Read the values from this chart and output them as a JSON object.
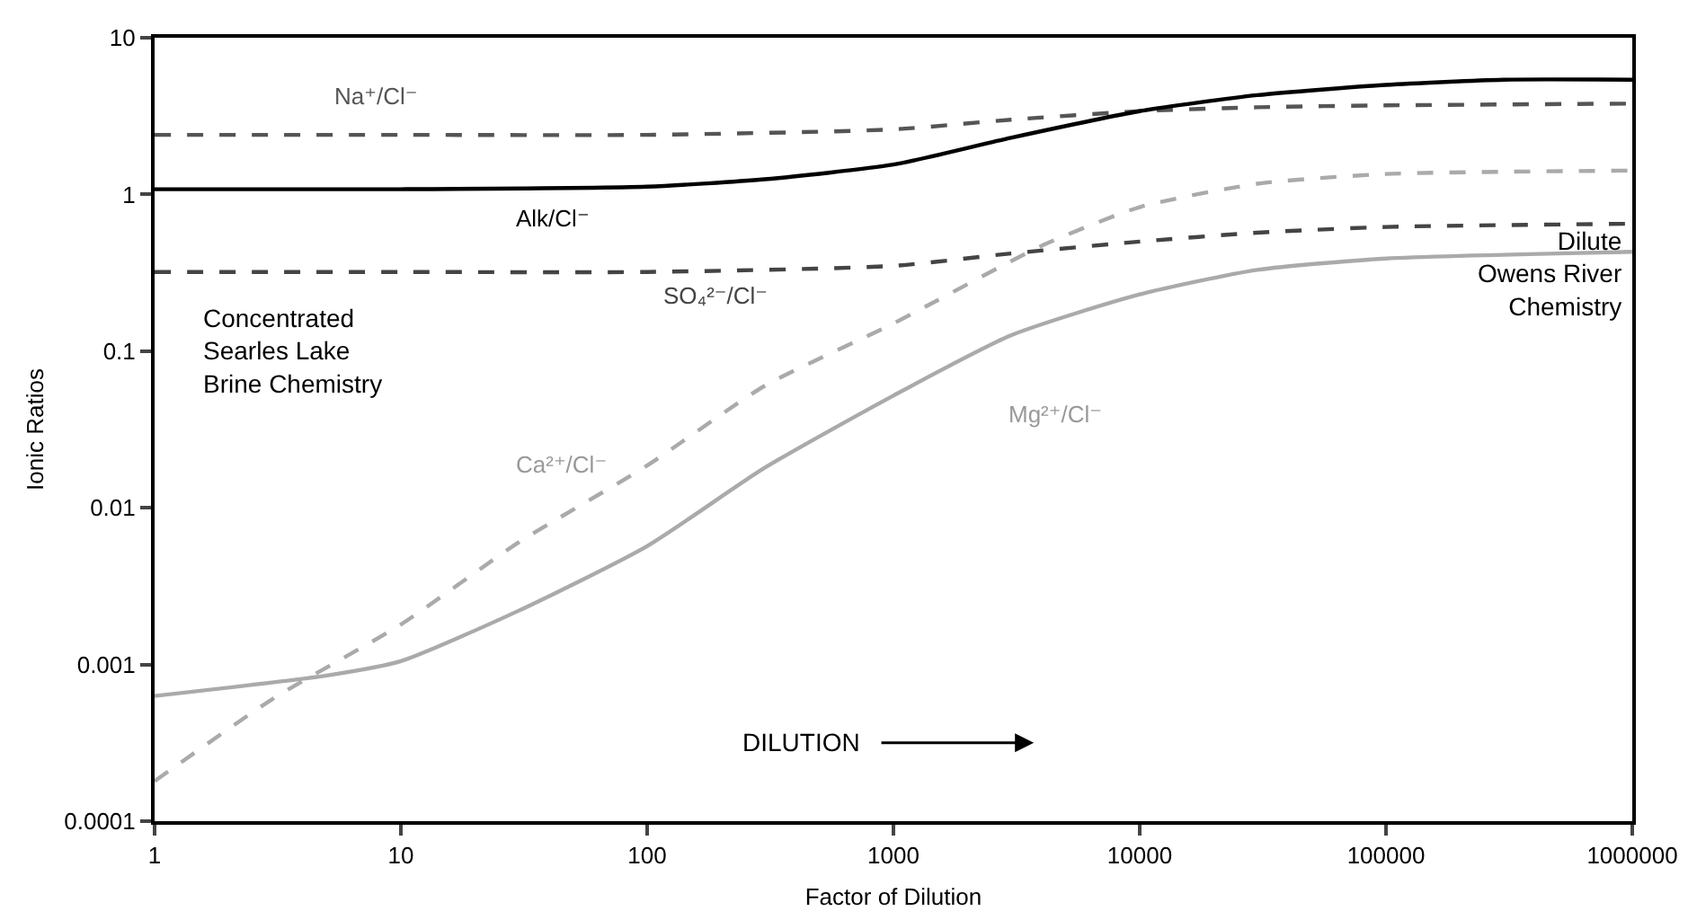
{
  "chart_data": {
    "type": "line",
    "xlabel": "Factor of Dilution",
    "ylabel": "Ionic Ratios",
    "log": "xy",
    "xlim": [
      1,
      1000000
    ],
    "xticks": [
      1,
      10,
      100,
      1000,
      10000,
      100000,
      1000000
    ],
    "ylim": [
      0.0001,
      10
    ],
    "yticks": [
      0.0001,
      0.001,
      0.01,
      0.1,
      1,
      10
    ],
    "grid": false,
    "legend": false,
    "marker": "none",
    "series": [
      {
        "name": "Na⁺/Cl⁻",
        "color": "#555555",
        "line_style": "dashed",
        "x": [
          1,
          10,
          100,
          1000,
          3000,
          10000,
          30000,
          100000,
          1000000
        ],
        "values": [
          2.4,
          2.4,
          2.4,
          2.6,
          3.0,
          3.4,
          3.6,
          3.7,
          3.8
        ]
      },
      {
        "name": "Alk/Cl⁻",
        "color": "#000000",
        "line_style": "solid",
        "x": [
          1,
          10,
          100,
          300,
          1000,
          3000,
          10000,
          30000,
          100000,
          300000,
          1000000
        ],
        "values": [
          1.08,
          1.08,
          1.12,
          1.25,
          1.55,
          2.3,
          3.4,
          4.3,
          5.0,
          5.4,
          5.4
        ]
      },
      {
        "name": "SO₄²⁻/Cl⁻",
        "color": "#444444",
        "line_style": "dashed",
        "x": [
          1,
          10,
          100,
          1000,
          3000,
          10000,
          30000,
          100000,
          1000000
        ],
        "values": [
          0.32,
          0.32,
          0.32,
          0.35,
          0.42,
          0.5,
          0.57,
          0.62,
          0.65
        ]
      },
      {
        "name": "Ca²⁺/Cl⁻",
        "color": "#aaaaaa",
        "line_style": "dashed",
        "x": [
          1,
          3,
          10,
          30,
          100,
          300,
          1000,
          4000,
          10000,
          30000,
          100000,
          1000000
        ],
        "values": [
          0.00018,
          0.0006,
          0.0018,
          0.006,
          0.0186,
          0.06,
          0.15,
          0.47,
          0.83,
          1.17,
          1.35,
          1.42
        ]
      },
      {
        "name": "Mg²⁺/Cl⁻",
        "color": "#aaaaaa",
        "line_style": "solid",
        "x": [
          1,
          5,
          10,
          30,
          100,
          300,
          1000,
          3000,
          10000,
          30000,
          100000,
          1000000
        ],
        "values": [
          0.00063,
          0.00085,
          0.00105,
          0.0022,
          0.0057,
          0.018,
          0.052,
          0.126,
          0.23,
          0.33,
          0.39,
          0.43
        ]
      }
    ],
    "annotations": [
      "Concentrated\nSearles Lake\nBrine Chemistry",
      "Dilute\nOwens River\nChemistry",
      "DILUTION"
    ]
  }
}
